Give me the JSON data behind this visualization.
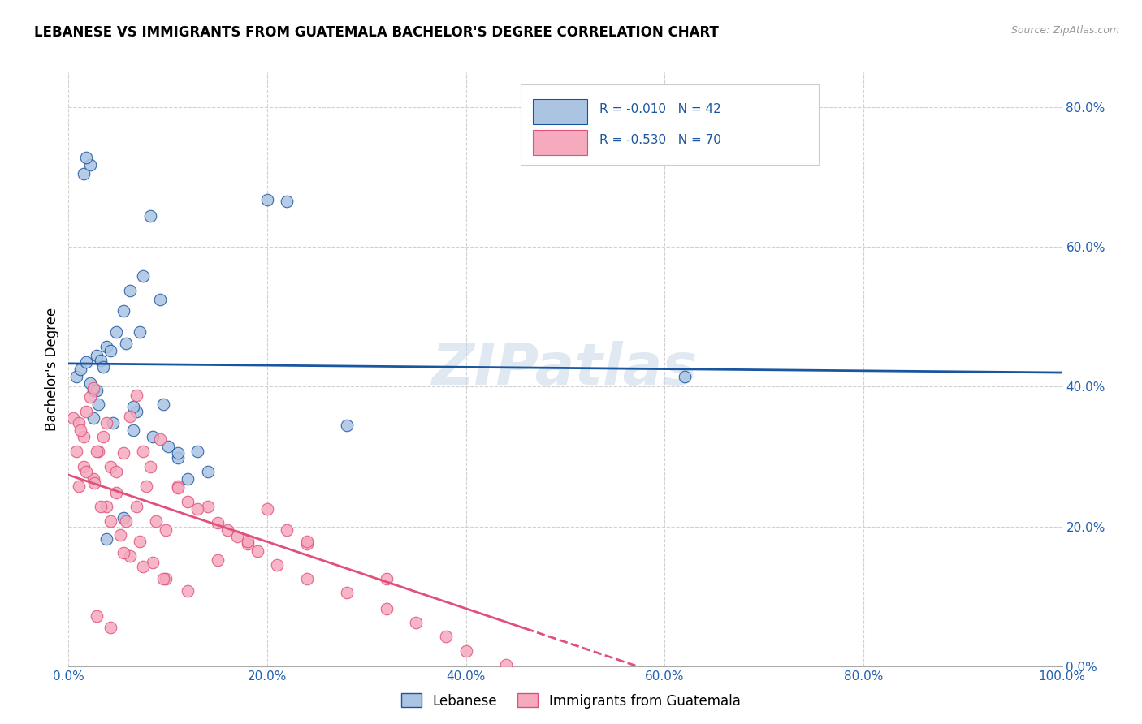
{
  "title": "LEBANESE VS IMMIGRANTS FROM GUATEMALA BACHELOR'S DEGREE CORRELATION CHART",
  "source": "Source: ZipAtlas.com",
  "ylabel": "Bachelor's Degree",
  "legend_label1": "Lebanese",
  "legend_label2": "Immigrants from Guatemala",
  "R1": "-0.010",
  "N1": "42",
  "R2": "-0.530",
  "N2": "70",
  "color_blue": "#aac4e2",
  "color_pink": "#f5aabe",
  "line_color_blue": "#1a55a0",
  "line_color_pink": "#e0507a",
  "watermark": "ZIPatlas",
  "blue_x": [
    0.008,
    0.012,
    0.018,
    0.022,
    0.025,
    0.028,
    0.032,
    0.035,
    0.038,
    0.042,
    0.048,
    0.055,
    0.062,
    0.068,
    0.075,
    0.082,
    0.092,
    0.1,
    0.11,
    0.12,
    0.13,
    0.058,
    0.072,
    0.095,
    0.015,
    0.022,
    0.018,
    0.03,
    0.025,
    0.045,
    0.065,
    0.085,
    0.11,
    0.14,
    0.28,
    0.22,
    0.62,
    0.2,
    0.055,
    0.038,
    0.028,
    0.065
  ],
  "blue_y": [
    0.415,
    0.425,
    0.435,
    0.405,
    0.395,
    0.445,
    0.438,
    0.428,
    0.458,
    0.452,
    0.478,
    0.508,
    0.538,
    0.365,
    0.558,
    0.645,
    0.525,
    0.315,
    0.298,
    0.268,
    0.308,
    0.462,
    0.478,
    0.375,
    0.705,
    0.718,
    0.728,
    0.375,
    0.355,
    0.348,
    0.338,
    0.328,
    0.305,
    0.278,
    0.345,
    0.665,
    0.415,
    0.668,
    0.212,
    0.182,
    0.395,
    0.372
  ],
  "pink_x": [
    0.005,
    0.01,
    0.015,
    0.008,
    0.012,
    0.018,
    0.022,
    0.025,
    0.015,
    0.025,
    0.03,
    0.035,
    0.038,
    0.042,
    0.048,
    0.055,
    0.062,
    0.068,
    0.075,
    0.082,
    0.092,
    0.01,
    0.018,
    0.028,
    0.038,
    0.048,
    0.058,
    0.068,
    0.078,
    0.088,
    0.098,
    0.11,
    0.12,
    0.14,
    0.16,
    0.18,
    0.2,
    0.22,
    0.24,
    0.026,
    0.032,
    0.042,
    0.052,
    0.062,
    0.072,
    0.085,
    0.098,
    0.11,
    0.13,
    0.15,
    0.17,
    0.19,
    0.21,
    0.24,
    0.28,
    0.32,
    0.35,
    0.38,
    0.4,
    0.44,
    0.32,
    0.24,
    0.055,
    0.075,
    0.095,
    0.12,
    0.15,
    0.18,
    0.028,
    0.042
  ],
  "pink_y": [
    0.355,
    0.348,
    0.328,
    0.308,
    0.338,
    0.365,
    0.385,
    0.398,
    0.285,
    0.268,
    0.308,
    0.328,
    0.348,
    0.285,
    0.278,
    0.305,
    0.358,
    0.388,
    0.308,
    0.285,
    0.325,
    0.258,
    0.278,
    0.308,
    0.228,
    0.248,
    0.208,
    0.228,
    0.258,
    0.208,
    0.195,
    0.258,
    0.235,
    0.228,
    0.195,
    0.175,
    0.225,
    0.195,
    0.175,
    0.262,
    0.228,
    0.208,
    0.188,
    0.158,
    0.178,
    0.148,
    0.125,
    0.255,
    0.225,
    0.205,
    0.185,
    0.165,
    0.145,
    0.125,
    0.105,
    0.082,
    0.062,
    0.042,
    0.022,
    0.002,
    0.125,
    0.178,
    0.162,
    0.142,
    0.125,
    0.108,
    0.152,
    0.178,
    0.072,
    0.055
  ]
}
